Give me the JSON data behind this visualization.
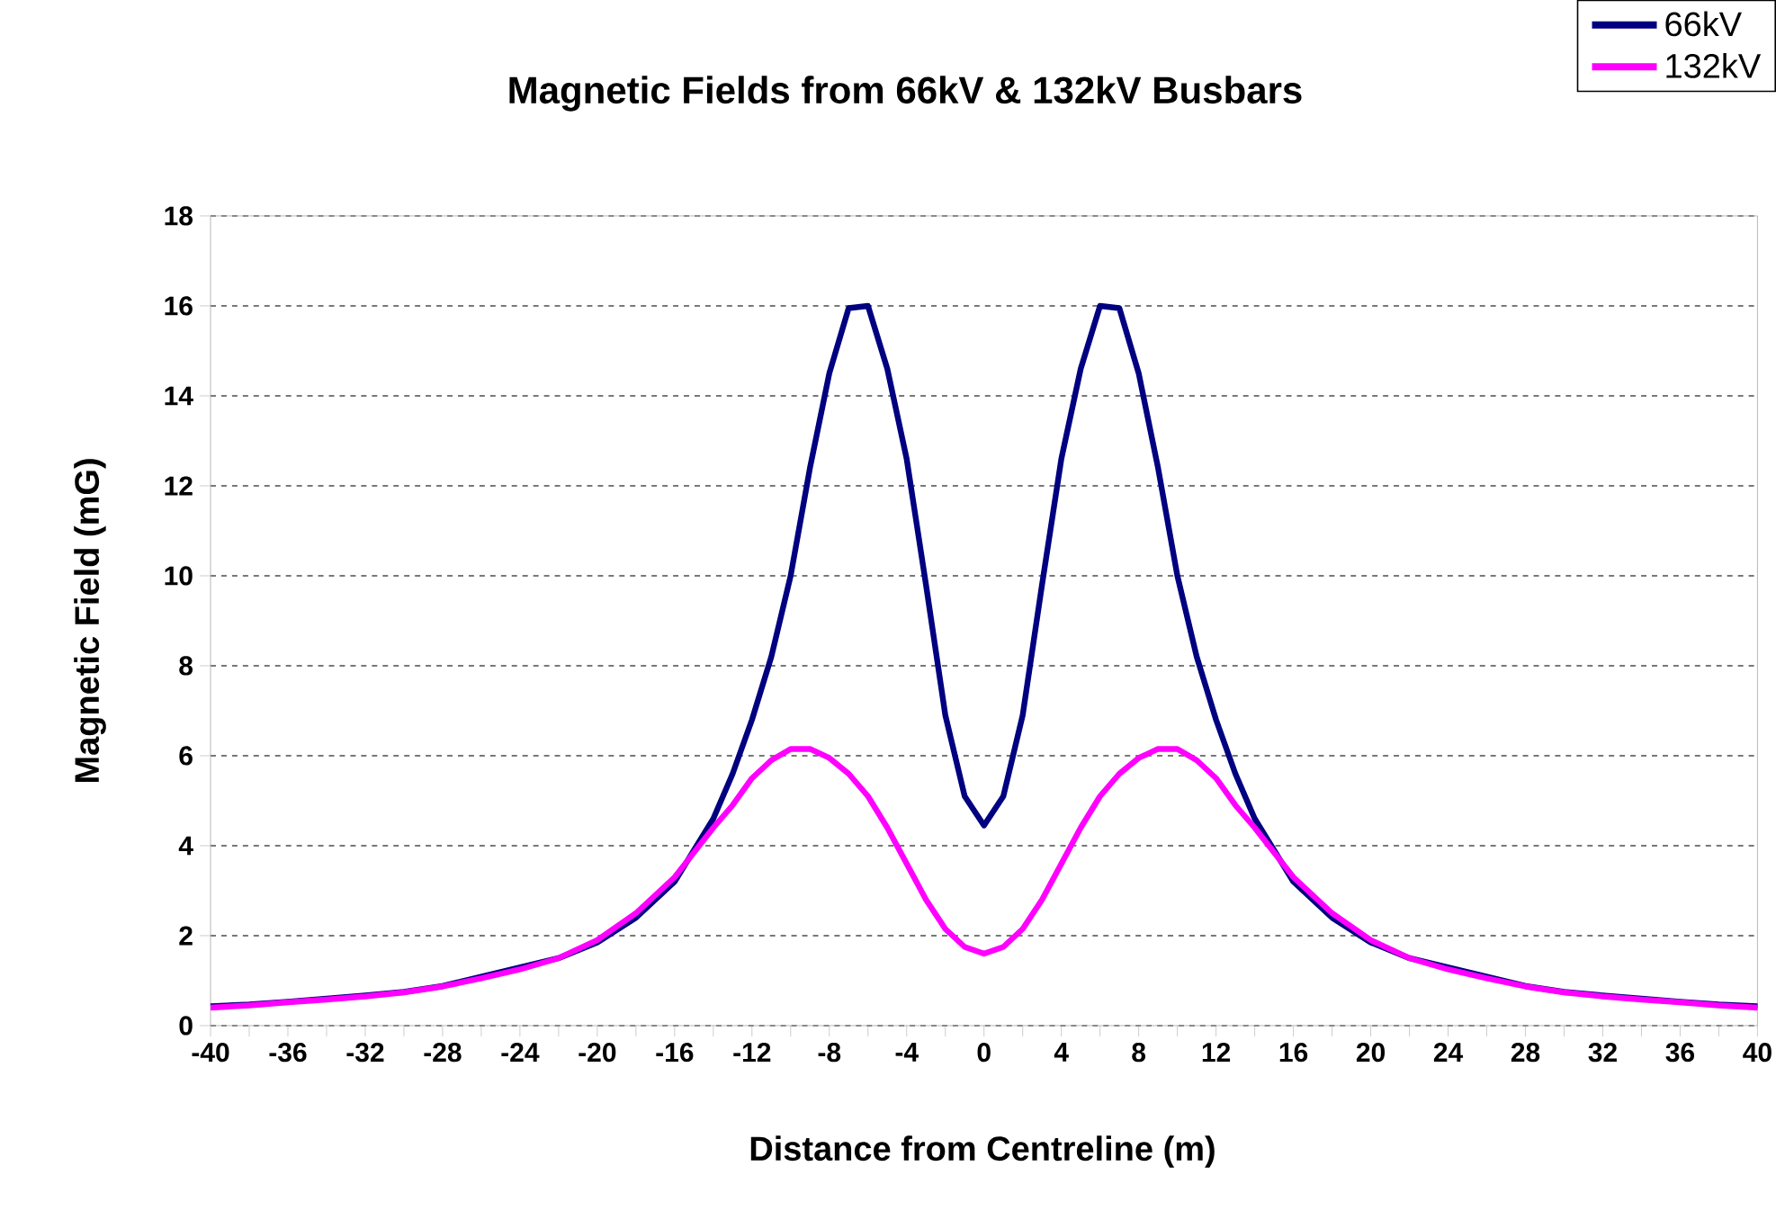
{
  "chart_data": {
    "type": "line",
    "title": "Magnetic Fields from 66kV & 132kV Busbars",
    "xlabel": "Distance from Centreline (m)",
    "ylabel": "Magnetic Field (mG)",
    "x": [
      -40,
      -38,
      -36,
      -34,
      -32,
      -30,
      -28,
      -26,
      -24,
      -22,
      -20,
      -18,
      -16,
      -15,
      -14,
      -13,
      -12,
      -11,
      -10,
      -9,
      -8,
      -7,
      -6,
      -5,
      -4,
      -3,
      -2,
      -1,
      0,
      1,
      2,
      3,
      4,
      5,
      6,
      7,
      8,
      9,
      10,
      11,
      12,
      13,
      14,
      15,
      16,
      18,
      20,
      22,
      24,
      26,
      28,
      30,
      32,
      34,
      36,
      38,
      40
    ],
    "series": [
      {
        "name": "66kV",
        "color": "#000080",
        "values": [
          0.43,
          0.47,
          0.53,
          0.6,
          0.67,
          0.75,
          0.88,
          null,
          null,
          1.5,
          1.85,
          2.4,
          3.2,
          3.9,
          4.6,
          5.6,
          6.8,
          8.2,
          10.0,
          12.4,
          14.5,
          15.95,
          16.0,
          14.6,
          12.6,
          9.8,
          6.9,
          5.1,
          4.45,
          5.1,
          6.9,
          9.8,
          12.6,
          14.6,
          16.0,
          15.95,
          14.5,
          12.4,
          10.0,
          8.2,
          6.8,
          5.6,
          4.6,
          3.9,
          3.2,
          2.4,
          1.85,
          1.5,
          null,
          null,
          0.88,
          0.75,
          0.67,
          0.6,
          0.53,
          0.47,
          0.43
        ]
      },
      {
        "name": "132kV",
        "color": "#ff00ff",
        "values": [
          0.4,
          0.45,
          0.52,
          0.58,
          0.65,
          0.74,
          0.87,
          1.05,
          1.25,
          1.5,
          1.9,
          2.5,
          3.3,
          3.85,
          4.4,
          4.9,
          5.5,
          5.9,
          6.15,
          6.15,
          5.95,
          5.6,
          5.1,
          4.4,
          3.6,
          2.8,
          2.15,
          1.75,
          1.6,
          1.75,
          2.15,
          2.8,
          3.6,
          4.4,
          5.1,
          5.6,
          5.95,
          6.15,
          6.15,
          5.9,
          5.5,
          4.9,
          4.4,
          3.85,
          3.3,
          2.5,
          1.9,
          1.5,
          1.25,
          1.05,
          0.87,
          0.74,
          0.65,
          0.58,
          0.52,
          0.45,
          0.4
        ]
      }
    ],
    "xlim": [
      -40,
      40
    ],
    "xticks": [
      -40,
      {
        "value": -38,
        "label": null
      },
      -36,
      {
        "value": -34,
        "label": null
      },
      -32,
      {
        "value": -30,
        "label": null
      },
      -28,
      {
        "value": -26,
        "label": null
      },
      -24,
      {
        "value": -22,
        "label": null
      },
      -20,
      {
        "value": -18,
        "label": null
      },
      -16,
      {
        "value": -14,
        "label": null
      },
      -12,
      {
        "value": -10,
        "label": null
      },
      -8,
      {
        "value": -6,
        "label": null
      },
      -4,
      {
        "value": -2,
        "label": null
      },
      0,
      {
        "value": 2,
        "label": null
      },
      4,
      {
        "value": 6,
        "label": null
      },
      8,
      {
        "value": 10,
        "label": null
      },
      12,
      {
        "value": 14,
        "label": null
      },
      16,
      {
        "value": 18,
        "label": null
      },
      20,
      {
        "value": 22,
        "label": null
      },
      24,
      {
        "value": 26,
        "label": null
      },
      28,
      {
        "value": 30,
        "label": null
      },
      32,
      {
        "value": 34,
        "label": null
      },
      36,
      {
        "value": 38,
        "label": null
      },
      40
    ],
    "ylim": [
      0,
      18
    ],
    "yticks": [
      0,
      2,
      4,
      6,
      8,
      10,
      12,
      14,
      16,
      18
    ],
    "grid": "y",
    "legend": "top right",
    "marker": "none",
    "line_style": "solid"
  }
}
